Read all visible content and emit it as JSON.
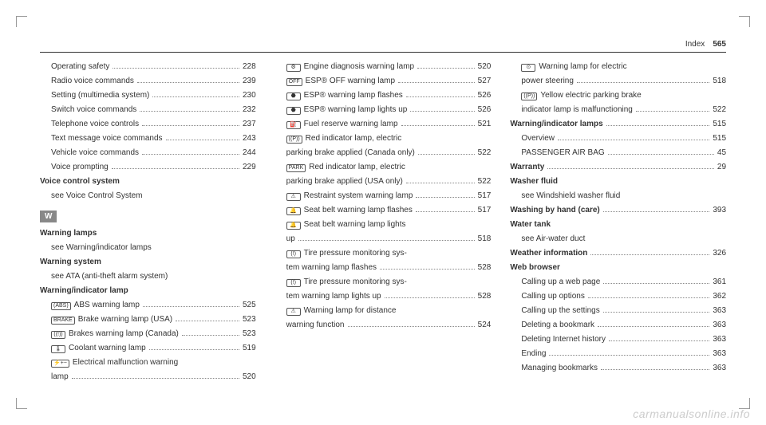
{
  "header": {
    "title": "Index",
    "page": "565"
  },
  "section_letter": "W",
  "watermark": "carmanualsonline.info",
  "col1": [
    {
      "type": "sub",
      "label": "Operating safety",
      "pg": "228"
    },
    {
      "type": "sub",
      "label": "Radio voice commands",
      "pg": "239"
    },
    {
      "type": "sub",
      "label": "Setting (multimedia system)",
      "pg": "230"
    },
    {
      "type": "sub",
      "label": "Switch voice commands",
      "pg": "232"
    },
    {
      "type": "sub",
      "label": "Telephone voice controls",
      "pg": "237"
    },
    {
      "type": "sub",
      "label": "Text message voice commands",
      "pg": "243"
    },
    {
      "type": "sub",
      "label": "Vehicle voice commands",
      "pg": "244"
    },
    {
      "type": "sub",
      "label": "Voice prompting",
      "pg": "229"
    },
    {
      "type": "bold",
      "label": "Voice control system"
    },
    {
      "type": "see",
      "label": "see Voice Control System"
    },
    {
      "type": "section",
      "label": "W"
    },
    {
      "type": "bold",
      "label": "Warning lamps"
    },
    {
      "type": "see",
      "label": "see Warning/indicator lamps"
    },
    {
      "type": "bold",
      "label": "Warning system"
    },
    {
      "type": "see",
      "label": "see ATA (anti-theft alarm system)"
    },
    {
      "type": "bold",
      "label": "Warning/indicator lamp"
    },
    {
      "type": "sub",
      "icon": "(ABS)",
      "label": "ABS warning lamp",
      "pg": "525"
    },
    {
      "type": "sub",
      "icon": "BRAKE",
      "label": "Brake warning lamp (USA)",
      "pg": "523"
    },
    {
      "type": "sub",
      "icon": "((!))",
      "label": "Brakes warning lamp (Canada)",
      "pg": "523"
    },
    {
      "type": "sub",
      "icon": "🌡",
      "label": "Coolant warning lamp",
      "pg": "519"
    },
    {
      "type": "sub",
      "icon": "⚡+−",
      "label": "Electrical malfunction warning",
      "cont": true
    },
    {
      "type": "contline",
      "label": "lamp",
      "pg": "520"
    }
  ],
  "col2": [
    {
      "type": "sub",
      "icon": "⚙",
      "label": "Engine diagnosis warning lamp",
      "pg": "520"
    },
    {
      "type": "sub",
      "icon": "OFF",
      "label": "ESP® OFF warning lamp",
      "pg": "527"
    },
    {
      "type": "sub",
      "icon": "⬣",
      "label": "ESP® warning lamp flashes",
      "pg": "526"
    },
    {
      "type": "sub",
      "icon": "⬣",
      "label": "ESP® warning lamp lights up",
      "pg": "526"
    },
    {
      "type": "sub",
      "icon": "⛽",
      "label": "Fuel reserve warning lamp",
      "pg": "521"
    },
    {
      "type": "sub",
      "icon": "((P))",
      "label": "Red indicator lamp, electric",
      "cont": true
    },
    {
      "type": "contline",
      "label": "parking brake applied (Canada only)",
      "pg": "522"
    },
    {
      "type": "sub",
      "icon": "PARK",
      "label": "Red indicator lamp, electric",
      "cont": true
    },
    {
      "type": "contline",
      "label": "parking brake applied (USA only)",
      "pg": "522"
    },
    {
      "type": "sub",
      "icon": "⚠",
      "label": "Restraint system warning lamp",
      "pg": "517"
    },
    {
      "type": "sub",
      "icon": "🔔",
      "label": "Seat belt warning lamp flashes",
      "pg": "517"
    },
    {
      "type": "sub",
      "icon": "🔔",
      "label": "Seat belt warning lamp lights",
      "cont": true
    },
    {
      "type": "contline",
      "label": "up",
      "pg": "518"
    },
    {
      "type": "sub",
      "icon": "(!)",
      "label": "Tire pressure monitoring sys-",
      "cont": true
    },
    {
      "type": "contline",
      "label": "tem warning lamp flashes",
      "pg": "528"
    },
    {
      "type": "sub",
      "icon": "(!)",
      "label": "Tire pressure monitoring sys-",
      "cont": true
    },
    {
      "type": "contline",
      "label": "tem warning lamp lights up",
      "pg": "528"
    },
    {
      "type": "sub",
      "icon": "⚠",
      "label": "Warning lamp for distance",
      "cont": true
    },
    {
      "type": "contline",
      "label": "warning function",
      "pg": "524"
    }
  ],
  "col3": [
    {
      "type": "sub",
      "icon": "⊙",
      "label": "Warning lamp for electric",
      "cont": true
    },
    {
      "type": "contline",
      "label": "power steering",
      "pg": "518"
    },
    {
      "type": "sub",
      "icon": "((P))",
      "label": "Yellow electric parking brake",
      "cont": true
    },
    {
      "type": "contline",
      "label": "indicator lamp is malfunctioning",
      "pg": "522"
    },
    {
      "type": "bold",
      "label": "Warning/indicator lamps",
      "pg": "515"
    },
    {
      "type": "sub",
      "label": "Overview",
      "pg": "515"
    },
    {
      "type": "sub",
      "label": "PASSENGER AIR BAG",
      "pg": "45"
    },
    {
      "type": "bold",
      "label": "Warranty",
      "pg": "29"
    },
    {
      "type": "bold",
      "label": "Washer fluid"
    },
    {
      "type": "see",
      "label": "see Windshield washer fluid"
    },
    {
      "type": "bold",
      "label": "Washing by hand (care)",
      "pg": "393"
    },
    {
      "type": "bold",
      "label": "Water tank"
    },
    {
      "type": "see",
      "label": "see Air-water duct"
    },
    {
      "type": "bold",
      "label": "Weather information",
      "pg": "326"
    },
    {
      "type": "bold",
      "label": "Web browser"
    },
    {
      "type": "sub",
      "label": "Calling up a web page",
      "pg": "361"
    },
    {
      "type": "sub",
      "label": "Calling up options",
      "pg": "362"
    },
    {
      "type": "sub",
      "label": "Calling up the settings",
      "pg": "363"
    },
    {
      "type": "sub",
      "label": "Deleting a bookmark",
      "pg": "363"
    },
    {
      "type": "sub",
      "label": "Deleting Internet history",
      "pg": "363"
    },
    {
      "type": "sub",
      "label": "Ending",
      "pg": "363"
    },
    {
      "type": "sub",
      "label": "Managing bookmarks",
      "pg": "363"
    }
  ]
}
